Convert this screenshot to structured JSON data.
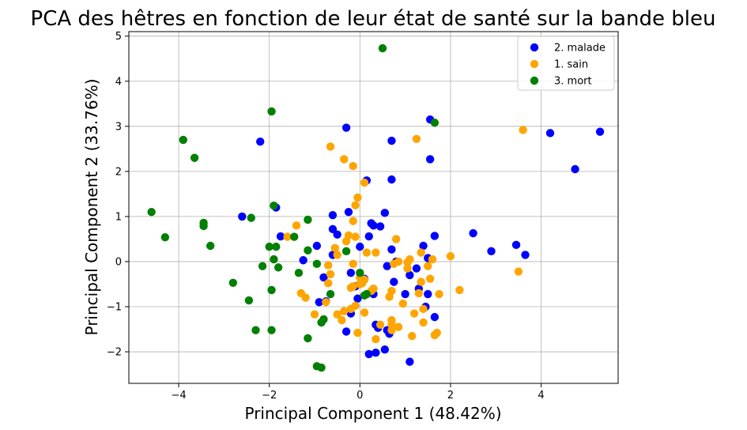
{
  "chart_data": {
    "type": "scatter",
    "title": "PCA des hêtres en fonction de leur état de santé sur la bande bleu",
    "xlabel": "Principal Component 1 (48.42%)",
    "ylabel": "Principal Component 2 (33.76%)",
    "xlim": [
      -5.1,
      5.7
    ],
    "ylim": [
      -2.7,
      5.1
    ],
    "xticks": [
      -4,
      -2,
      0,
      2,
      4
    ],
    "yticks": [
      -2,
      -1,
      0,
      1,
      2,
      3,
      4,
      5
    ],
    "grid": true,
    "legend_position": "top-right",
    "series": [
      {
        "name": "2. malade",
        "color": "#0000ff",
        "points": [
          [
            5.3,
            2.88
          ],
          [
            4.2,
            2.85
          ],
          [
            4.75,
            2.05
          ],
          [
            3.65,
            0.15
          ],
          [
            3.45,
            0.37
          ],
          [
            2.9,
            0.23
          ],
          [
            2.5,
            0.63
          ],
          [
            1.55,
            3.15
          ],
          [
            1.55,
            2.27
          ],
          [
            0.7,
            2.68
          ],
          [
            0.7,
            1.82
          ],
          [
            -2.2,
            2.66
          ],
          [
            -0.3,
            2.97
          ],
          [
            0.15,
            1.8
          ],
          [
            -0.25,
            1.1
          ],
          [
            0.55,
            1.08
          ],
          [
            -0.6,
            1.03
          ],
          [
            -2.6,
            1.0
          ],
          [
            -1.85,
            1.2
          ],
          [
            0.25,
            0.85
          ],
          [
            0.3,
            0.8
          ],
          [
            0.45,
            0.78
          ],
          [
            -0.6,
            0.72
          ],
          [
            -0.5,
            0.6
          ],
          [
            0.2,
            0.56
          ],
          [
            -1.75,
            0.56
          ],
          [
            1.65,
            0.57
          ],
          [
            1.4,
            0.35
          ],
          [
            0.7,
            0.27
          ],
          [
            -0.95,
            0.35
          ],
          [
            0.0,
            0.33
          ],
          [
            -0.6,
            0.15
          ],
          [
            1.5,
            0.08
          ],
          [
            -1.25,
            0.03
          ],
          [
            0.8,
            0.0
          ],
          [
            0.6,
            -0.1
          ],
          [
            1.25,
            -0.15
          ],
          [
            -0.8,
            -0.35
          ],
          [
            -0.2,
            -0.25
          ],
          [
            0.1,
            -0.38
          ],
          [
            1.1,
            -0.3
          ],
          [
            0.75,
            -0.45
          ],
          [
            -0.1,
            -0.55
          ],
          [
            1.3,
            -0.6
          ],
          [
            0.3,
            -0.72
          ],
          [
            1.0,
            -0.72
          ],
          [
            1.5,
            -0.72
          ],
          [
            -0.05,
            -0.82
          ],
          [
            -0.9,
            -0.9
          ],
          [
            -0.75,
            -0.88
          ],
          [
            1.45,
            -1.0
          ],
          [
            1.65,
            -1.23
          ],
          [
            -0.2,
            -1.15
          ],
          [
            0.35,
            -1.4
          ],
          [
            0.4,
            -1.47
          ],
          [
            0.6,
            -1.52
          ],
          [
            -0.3,
            -1.55
          ],
          [
            0.65,
            -1.6
          ],
          [
            0.55,
            -1.95
          ],
          [
            0.35,
            -2.02
          ],
          [
            0.2,
            -2.05
          ],
          [
            1.1,
            -2.22
          ]
        ]
      },
      {
        "name": "1. sain",
        "color": "#ffa500",
        "points": [
          [
            3.6,
            2.92
          ],
          [
            3.5,
            -0.22
          ],
          [
            1.25,
            2.72
          ],
          [
            -0.65,
            2.55
          ],
          [
            -0.35,
            2.27
          ],
          [
            -0.15,
            2.12
          ],
          [
            0.1,
            1.75
          ],
          [
            -0.05,
            1.42
          ],
          [
            -0.1,
            1.25
          ],
          [
            -1.4,
            0.8
          ],
          [
            -0.15,
            0.9
          ],
          [
            -0.25,
            0.58
          ],
          [
            -0.1,
            0.55
          ],
          [
            -0.3,
            0.45
          ],
          [
            -1.6,
            0.55
          ],
          [
            0.8,
            0.5
          ],
          [
            -0.55,
            0.3
          ],
          [
            -0.5,
            0.15
          ],
          [
            0.15,
            0.2
          ],
          [
            0.35,
            0.2
          ],
          [
            1.35,
            0.2
          ],
          [
            2.0,
            0.12
          ],
          [
            1.6,
            0.05
          ],
          [
            1.1,
            0.05
          ],
          [
            1.05,
            -0.02
          ],
          [
            0.85,
            0.0
          ],
          [
            0.75,
            -0.05
          ],
          [
            -0.7,
            -0.08
          ],
          [
            -0.15,
            -0.05
          ],
          [
            1.5,
            -0.1
          ],
          [
            1.05,
            -0.15
          ],
          [
            -0.65,
            -0.28
          ],
          [
            0.0,
            -0.35
          ],
          [
            0.1,
            -0.4
          ],
          [
            1.55,
            -0.38
          ],
          [
            1.35,
            -0.45
          ],
          [
            -0.7,
            -0.48
          ],
          [
            0.0,
            -0.5
          ],
          [
            0.05,
            -0.48
          ],
          [
            -0.15,
            -0.55
          ],
          [
            -0.2,
            -0.58
          ],
          [
            0.3,
            -0.6
          ],
          [
            0.25,
            -0.65
          ],
          [
            0.7,
            -0.65
          ],
          [
            2.2,
            -0.63
          ],
          [
            -1.3,
            -0.7
          ],
          [
            1.3,
            -0.7
          ],
          [
            1.75,
            -0.72
          ],
          [
            0.65,
            -0.78
          ],
          [
            -1.2,
            -0.8
          ],
          [
            -0.75,
            -0.9
          ],
          [
            0.95,
            -0.93
          ],
          [
            -0.1,
            -0.98
          ],
          [
            -0.2,
            -1.05
          ],
          [
            1.4,
            -1.05
          ],
          [
            -0.35,
            -1.1
          ],
          [
            0.1,
            -1.13
          ],
          [
            -1.0,
            -1.17
          ],
          [
            -0.5,
            -1.17
          ],
          [
            1.2,
            -1.15
          ],
          [
            -0.4,
            -1.3
          ],
          [
            0.7,
            -1.3
          ],
          [
            1.4,
            -1.35
          ],
          [
            0.7,
            -1.4
          ],
          [
            0.45,
            -1.4
          ],
          [
            0.85,
            -1.45
          ],
          [
            0.7,
            -1.52
          ],
          [
            1.7,
            -1.58
          ],
          [
            -0.05,
            -1.58
          ],
          [
            1.65,
            -1.63
          ],
          [
            1.15,
            -1.65
          ],
          [
            0.35,
            -1.72
          ]
        ]
      },
      {
        "name": "3. mort",
        "color": "#008000",
        "points": [
          [
            0.5,
            4.73
          ],
          [
            -1.95,
            3.33
          ],
          [
            1.65,
            3.08
          ],
          [
            -3.9,
            2.7
          ],
          [
            -3.65,
            2.3
          ],
          [
            -4.6,
            1.1
          ],
          [
            -1.9,
            1.24
          ],
          [
            -2.4,
            0.97
          ],
          [
            -1.15,
            0.93
          ],
          [
            -3.45,
            0.86
          ],
          [
            -3.45,
            0.79
          ],
          [
            -4.3,
            0.54
          ],
          [
            -1.45,
            0.55
          ],
          [
            -3.3,
            0.35
          ],
          [
            -2.0,
            0.33
          ],
          [
            -1.85,
            0.33
          ],
          [
            -1.15,
            0.25
          ],
          [
            -0.3,
            0.23
          ],
          [
            -1.9,
            0.05
          ],
          [
            -0.95,
            -0.05
          ],
          [
            -2.15,
            -0.1
          ],
          [
            -1.8,
            -0.13
          ],
          [
            -1.35,
            -0.25
          ],
          [
            0.0,
            -0.25
          ],
          [
            -2.8,
            -0.47
          ],
          [
            -1.95,
            -0.63
          ],
          [
            -0.65,
            -0.72
          ],
          [
            0.15,
            -0.72
          ],
          [
            0.1,
            -0.75
          ],
          [
            -2.45,
            -0.86
          ],
          [
            -0.8,
            -1.28
          ],
          [
            -0.85,
            -1.35
          ],
          [
            -2.3,
            -1.52
          ],
          [
            -1.95,
            -1.52
          ],
          [
            -1.15,
            -1.7
          ],
          [
            -0.95,
            -2.32
          ],
          [
            -0.85,
            -2.35
          ]
        ]
      }
    ]
  }
}
